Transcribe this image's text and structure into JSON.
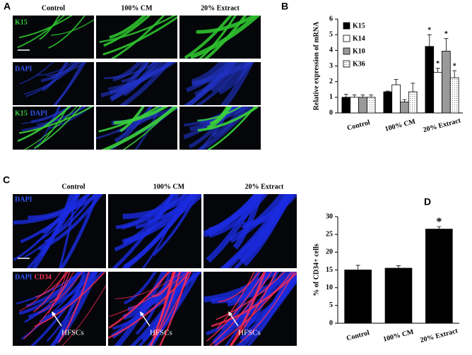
{
  "figure": {
    "panel_labels": [
      "A",
      "B",
      "C",
      "D"
    ],
    "panel_a": {
      "columns": [
        "Control",
        "100% CM",
        "20% Extract"
      ],
      "rows": [
        [
          "K15"
        ],
        [
          "DAPI"
        ],
        [
          "K15",
          "DAPI"
        ]
      ]
    },
    "panel_c": {
      "columns": [
        "Control",
        "100% CM",
        "20% Extract"
      ],
      "rows": [
        [
          "DAPI"
        ],
        [
          "DAPI",
          "CD34"
        ]
      ],
      "arrows": [
        "HFSCs",
        "HFSCs",
        "HFSCs"
      ]
    }
  },
  "chart_data": [
    {
      "type": "bar",
      "y_label": "Relative expression of mRNA",
      "categories": [
        "Control",
        "100% CM",
        "20% Extract"
      ],
      "series": [
        {
          "name": "K15",
          "color": "#000000",
          "values": [
            1.0,
            1.35,
            4.25
          ],
          "errors": [
            0.2,
            0.05,
            0.75
          ],
          "stars": [
            null,
            null,
            "*"
          ]
        },
        {
          "name": "K14",
          "color": "#ffffff",
          "values": [
            1.0,
            1.8,
            2.6
          ],
          "errors": [
            0.15,
            0.35,
            0.25
          ],
          "stars": [
            null,
            null,
            "*"
          ]
        },
        {
          "name": "K10",
          "color": "#9a9a9a",
          "values": [
            1.0,
            0.7,
            3.95
          ],
          "errors": [
            0.15,
            0.15,
            0.8
          ],
          "stars": [
            null,
            null,
            "*"
          ]
        },
        {
          "name": "K36",
          "color": "#ffffff",
          "pattern": "dots",
          "values": [
            1.0,
            1.35,
            2.25
          ],
          "errors": [
            0.15,
            0.55,
            0.45
          ],
          "stars": [
            null,
            null,
            "*"
          ]
        }
      ],
      "ylim": [
        0,
        6
      ],
      "yticks": [
        0,
        1,
        2,
        3,
        4,
        5,
        6
      ],
      "legend": "upper-left"
    },
    {
      "type": "bar",
      "y_label": "% of CD34+ cells",
      "categories": [
        "Control",
        "100% CM",
        "20% Extract"
      ],
      "color": "#000000",
      "values": [
        15,
        15.5,
        26.5
      ],
      "errors": [
        1.3,
        0.7,
        0.7
      ],
      "stars": [
        null,
        null,
        "*"
      ],
      "ylim": [
        0,
        30
      ],
      "yticks": [
        0,
        5,
        10,
        15,
        20,
        25,
        30
      ]
    }
  ]
}
